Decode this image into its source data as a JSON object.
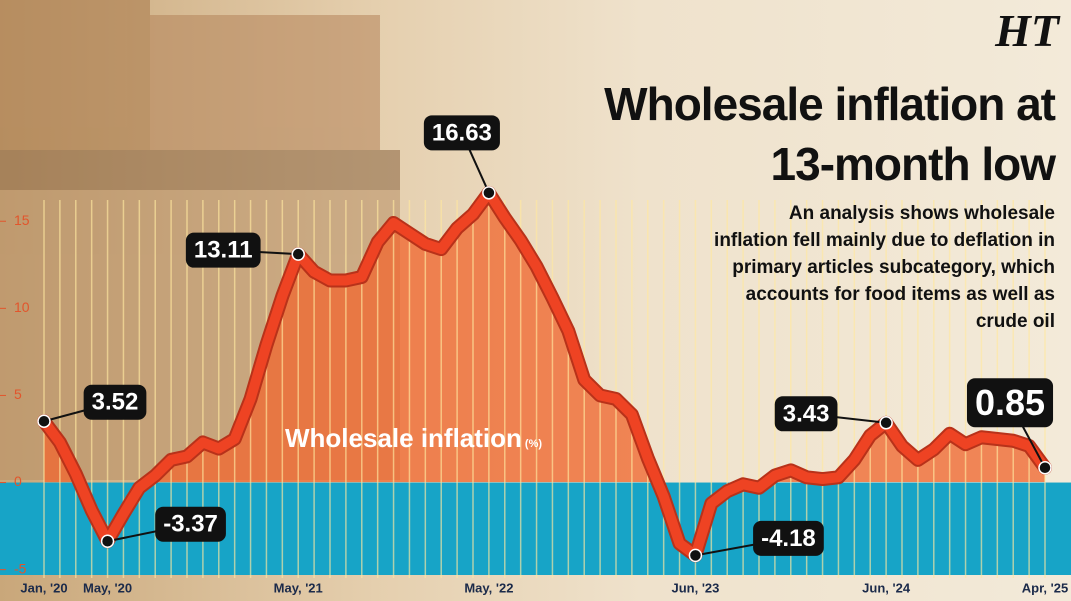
{
  "logo": "HT",
  "chart_data": {
    "type": "line",
    "title": "Wholesale inflation at 13-month low",
    "subtitle": "An analysis shows wholesale inflation fell mainly due to deflation in primary articles subcategory, which accounts for food items as well as crude oil",
    "categories": [
      "Jan, '20",
      null,
      null,
      null,
      "May, '20",
      null,
      null,
      null,
      null,
      null,
      null,
      null,
      null,
      null,
      null,
      null,
      "May, '21",
      null,
      null,
      null,
      null,
      null,
      null,
      null,
      null,
      null,
      null,
      null,
      "May, '22",
      null,
      null,
      null,
      null,
      null,
      null,
      null,
      null,
      null,
      null,
      null,
      null,
      "Jun, '23",
      null,
      null,
      null,
      null,
      null,
      null,
      null,
      null,
      null,
      null,
      null,
      "Jun, '24",
      null,
      null,
      null,
      null,
      null,
      null,
      null,
      null,
      null,
      "Apr, '25"
    ],
    "series": [
      {
        "name": "Wholesale inflation",
        "unit": "(%)",
        "color": "#ee4323",
        "values": [
          3.52,
          2.3,
          0.5,
          -1.6,
          -3.37,
          -1.8,
          -0.3,
          0.4,
          1.3,
          1.5,
          2.3,
          1.95,
          2.5,
          4.8,
          7.9,
          10.7,
          13.11,
          12.1,
          11.6,
          11.6,
          11.8,
          13.8,
          14.9,
          14.3,
          13.7,
          13.4,
          14.6,
          15.4,
          16.63,
          15.2,
          13.9,
          12.4,
          10.6,
          8.7,
          5.9,
          5.0,
          4.8,
          3.9,
          1.4,
          -0.8,
          -3.5,
          -4.18,
          -1.2,
          -0.5,
          -0.1,
          -0.3,
          0.4,
          0.7,
          0.3,
          0.2,
          0.3,
          1.3,
          2.7,
          3.43,
          2.1,
          1.3,
          1.9,
          2.8,
          2.2,
          2.6,
          2.5,
          2.4,
          2.1,
          0.85
        ]
      }
    ],
    "ylim": [
      -6.8,
      27.7
    ],
    "yticks": [
      -5,
      0,
      5,
      10,
      15
    ],
    "grid": false
  }
}
